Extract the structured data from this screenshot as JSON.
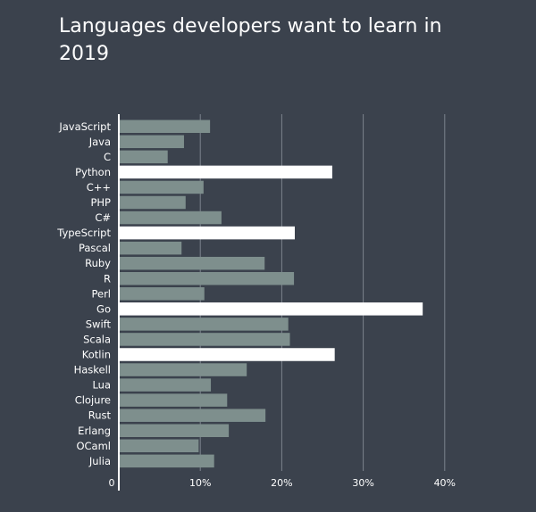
{
  "chart_data": {
    "type": "bar",
    "orientation": "horizontal",
    "title": "Languages developers want to learn in 2019",
    "categories": [
      "JavaScript",
      "Java",
      "C",
      "Python",
      "C++",
      "PHP",
      "C#",
      "TypeScript",
      "Pascal",
      "Ruby",
      "R",
      "Perl",
      "Go",
      "Swift",
      "Scala",
      "Kotlin",
      "Haskell",
      "Lua",
      "Clojure",
      "Rust",
      "Erlang",
      "OCaml",
      "Julia"
    ],
    "values": [
      11.2,
      8.0,
      6.0,
      26.2,
      10.4,
      8.2,
      12.6,
      21.6,
      7.7,
      17.9,
      21.5,
      10.5,
      37.3,
      20.8,
      21.0,
      26.5,
      15.7,
      11.3,
      13.3,
      18.0,
      13.5,
      9.8,
      11.7
    ],
    "highlighted": [
      "Python",
      "TypeScript",
      "Go",
      "Kotlin"
    ],
    "xlim": [
      0,
      40
    ],
    "xticks": [
      0,
      10,
      20,
      30,
      40
    ],
    "xtick_labels": [
      "0",
      "10%",
      "20%",
      "30%",
      "40%"
    ],
    "grid": true,
    "colors": {
      "background": "#3b424d",
      "bar": "#7e8f8d",
      "bar_highlight": "#ffffff",
      "grid": "#7c838d",
      "axis": "#ffffff",
      "text": "#ffffff"
    }
  }
}
